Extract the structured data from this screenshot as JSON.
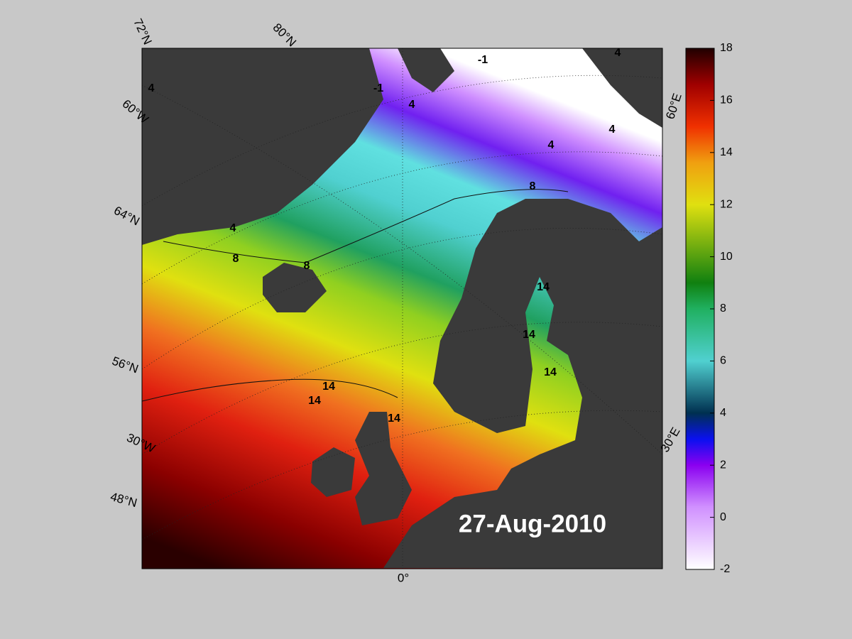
{
  "map": {
    "graticule_labels": [
      "72°N",
      "80°N",
      "60°W",
      "64°N",
      "56°N",
      "30°W",
      "48°N",
      "0°",
      "30°E",
      "60°E"
    ],
    "contour_labels": [
      -1,
      -1,
      4,
      4,
      4,
      4,
      4,
      4,
      8,
      8,
      8,
      14,
      14,
      14,
      14,
      14,
      14
    ],
    "date": "27-Aug-2010"
  },
  "colorbar": {
    "lim": [
      -2,
      18
    ],
    "ticks": [
      -2,
      0,
      2,
      4,
      6,
      8,
      10,
      12,
      14,
      16,
      18
    ]
  }
}
